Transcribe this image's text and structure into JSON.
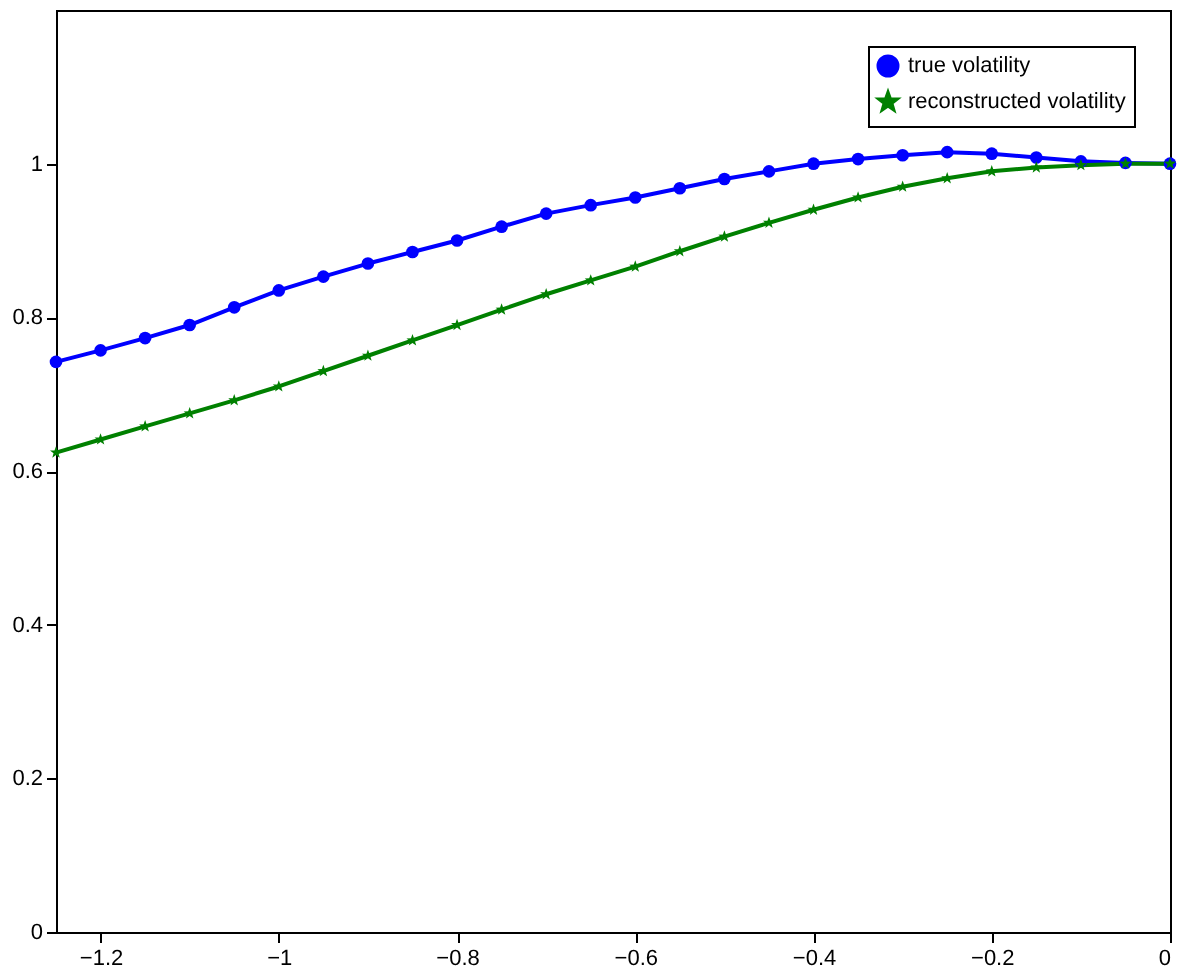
{
  "chart_data": {
    "type": "line",
    "xlim": [
      -1.25,
      0
    ],
    "xticks": [
      -1.2,
      -1,
      -0.8,
      -0.6,
      -0.4,
      -0.2,
      0
    ],
    "ylim": [
      0,
      1.2
    ],
    "yticks": [
      0,
      0.2,
      0.4,
      0.6,
      0.8,
      1
    ],
    "x": [
      -1.25,
      -1.2,
      -1.15,
      -1.1,
      -1.05,
      -1.0,
      -0.95,
      -0.9,
      -0.85,
      -0.8,
      -0.75,
      -0.7,
      -0.65,
      -0.6,
      -0.55,
      -0.5,
      -0.45,
      -0.4,
      -0.35,
      -0.3,
      -0.25,
      -0.2,
      -0.15,
      -0.1,
      -0.05,
      0
    ],
    "series": [
      {
        "name": "true volatility",
        "color": "#0000ff",
        "marker": "circle",
        "values": [
          0.742,
          0.757,
          0.773,
          0.79,
          0.813,
          0.835,
          0.853,
          0.87,
          0.885,
          0.9,
          0.918,
          0.935,
          0.946,
          0.956,
          0.968,
          0.98,
          0.99,
          1.0,
          1.006,
          1.011,
          1.015,
          1.013,
          1.008,
          1.003,
          1.001,
          1.0
        ]
      },
      {
        "name": "reconstructed volatility",
        "color": "#008000",
        "marker": "star",
        "values": [
          0.624,
          0.641,
          0.658,
          0.675,
          0.692,
          0.71,
          0.73,
          0.75,
          0.77,
          0.79,
          0.81,
          0.83,
          0.848,
          0.866,
          0.886,
          0.905,
          0.923,
          0.94,
          0.956,
          0.97,
          0.981,
          0.99,
          0.995,
          0.998,
          1.0,
          1.0
        ]
      }
    ],
    "legend": "top right",
    "grid": false
  }
}
